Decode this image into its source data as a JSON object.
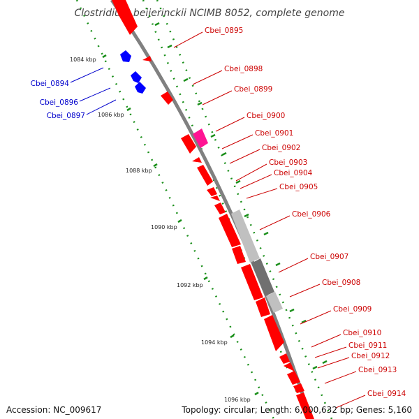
{
  "title": "Clostridium beijerinckii NCIMB 8052, complete genome",
  "colors": {
    "forward_gene": "#ff0000",
    "reverse_gene": "#0000ff",
    "highlight_gene": "#ff1493",
    "rna_light": "#c0c0c0",
    "rna_dark": "#707070",
    "backbone": "#808080",
    "tick": "#1a8f1a",
    "forward_label": "#cc0000",
    "reverse_label": "#0000cc"
  },
  "ticks": [
    {
      "label": "1084 kbp"
    },
    {
      "label": "1086 kbp"
    },
    {
      "label": "1088 kbp"
    },
    {
      "label": "1090 kbp"
    },
    {
      "label": "1092 kbp"
    },
    {
      "label": "1094 kbp"
    },
    {
      "label": "1096 kbp"
    }
  ],
  "genes_reverse": [
    {
      "name": "Cbei_0894"
    },
    {
      "name": "Cbei_0896"
    },
    {
      "name": "Cbei_0897"
    }
  ],
  "genes_forward": [
    {
      "name": "Cbei_0895"
    },
    {
      "name": "Cbei_0898"
    },
    {
      "name": "Cbei_0899"
    },
    {
      "name": "Cbei_0900"
    },
    {
      "name": "Cbei_0901"
    },
    {
      "name": "Cbei_0902"
    },
    {
      "name": "Cbei_0903"
    },
    {
      "name": "Cbei_0904"
    },
    {
      "name": "Cbei_0905"
    },
    {
      "name": "Cbei_0906"
    },
    {
      "name": "Cbei_0907"
    },
    {
      "name": "Cbei_0908"
    },
    {
      "name": "Cbei_0909"
    },
    {
      "name": "Cbei_0910"
    },
    {
      "name": "Cbei_0911"
    },
    {
      "name": "Cbei_0912"
    },
    {
      "name": "Cbei_0913"
    },
    {
      "name": "Cbei_0914"
    }
  ],
  "footer": {
    "accession": "Accession: NC_009617",
    "topology": "Topology: circular; Length: 6,000,632 bp; Genes: 5,160"
  }
}
